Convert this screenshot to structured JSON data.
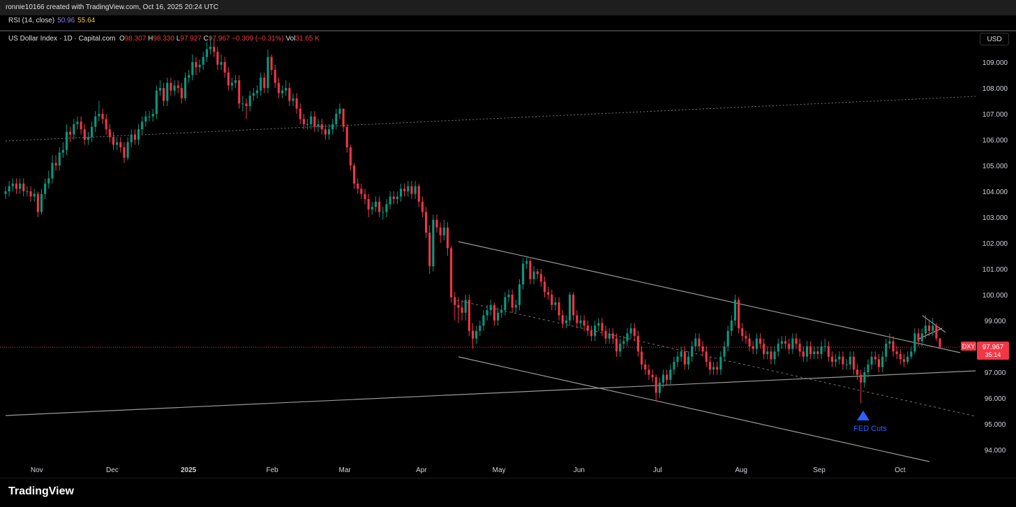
{
  "top_bar": "ronnie10166 created with TradingView.com, Oct 16, 2025 20:24 UTC",
  "rsi": {
    "label": "RSI (14, close)",
    "value": "50.96",
    "ma": "55.64"
  },
  "legend": {
    "symbol": "US Dollar Index · 1D · Capital.com",
    "o_label": "O",
    "o": "98.307",
    "h_label": "H",
    "h": "98.330",
    "l_label": "L",
    "l": "97.927",
    "c_label": "C",
    "c": "97.967",
    "change": "−0.309 (−0.31%)",
    "vol_label": "Vol",
    "vol": "31.65 K"
  },
  "currency": "USD",
  "footer": "TradingView",
  "chart_data": {
    "type": "candlestick",
    "up_color": "#089981",
    "down_color": "#f23645",
    "price_label": {
      "symbol": "DXY",
      "countdown": "35:14"
    },
    "annotation": "FED Cuts",
    "xlim": [
      -1.55,
      269.9
    ],
    "xticks": [
      {
        "value": 8.7,
        "label": "Nov"
      },
      {
        "value": 29.7,
        "label": "Dec"
      },
      {
        "value": 50.9,
        "label": "2025"
      },
      {
        "value": 74.2,
        "label": "Feb"
      },
      {
        "value": 94.4,
        "label": "Mar"
      },
      {
        "value": 115.7,
        "label": "Apr"
      },
      {
        "value": 137.3,
        "label": "May"
      },
      {
        "value": 159.6,
        "label": "Jun"
      },
      {
        "value": 181.4,
        "label": "Jul"
      },
      {
        "value": 204.7,
        "label": "Aug"
      },
      {
        "value": 226.4,
        "label": "Sep"
      },
      {
        "value": 248.9,
        "label": "Oct"
      }
    ],
    "ylim": [
      92.97,
      110.19
    ],
    "yticks": [
      {
        "value": 94,
        "label": "94.000"
      },
      {
        "value": 95,
        "label": "95.000"
      },
      {
        "value": 96,
        "label": "96.000"
      },
      {
        "value": 97,
        "label": "97.000"
      },
      {
        "value": 98,
        "label": "98.000"
      },
      {
        "value": 99,
        "label": "99.000"
      },
      {
        "value": 100,
        "label": "100.000"
      },
      {
        "value": 101,
        "label": "101.000"
      },
      {
        "value": 102,
        "label": "102.000"
      },
      {
        "value": 103,
        "label": "103.000"
      },
      {
        "value": 104,
        "label": "104.000"
      },
      {
        "value": 105,
        "label": "105.000"
      },
      {
        "value": 106,
        "label": "106.000"
      },
      {
        "value": 107,
        "label": "107.000"
      },
      {
        "value": 108,
        "label": "108.000"
      },
      {
        "value": 109,
        "label": "109.000"
      }
    ],
    "open": [
      103.9,
      104.0,
      104.2,
      104.3,
      104.1,
      104.3,
      104.0,
      104.0,
      103.8,
      103.9,
      103.2,
      103.9,
      104.3,
      104.5,
      105.1,
      105.0,
      105.5,
      105.6,
      106.3,
      106.2,
      106.6,
      106.7,
      106.4,
      106.0,
      106.1,
      106.5,
      106.9,
      107.0,
      106.8,
      106.4,
      106.1,
      105.8,
      105.9,
      105.7,
      105.3,
      105.9,
      106.2,
      106.0,
      106.4,
      106.7,
      106.9,
      106.9,
      107.0,
      107.9,
      108.0,
      107.5,
      108.2,
      107.9,
      108.1,
      108.0,
      107.6,
      108.4,
      108.5,
      109.0,
      108.8,
      108.9,
      109.2,
      109.5,
      109.6,
      109.4,
      108.9,
      109.0,
      108.6,
      108.1,
      108.2,
      108.3,
      107.4,
      107.4,
      107.3,
      107.7,
      107.8,
      107.9,
      108.4,
      108.0,
      109.2,
      108.7,
      108.2,
      107.8,
      107.9,
      108.0,
      107.5,
      107.6,
      107.2,
      106.8,
      106.6,
      106.6,
      106.9,
      106.5,
      106.6,
      106.4,
      106.2,
      106.4,
      106.6,
      107.0,
      107.2,
      106.5,
      105.7,
      105.0,
      104.3,
      104.1,
      103.9,
      103.7,
      103.3,
      103.4,
      103.6,
      103.2,
      103.2,
      103.5,
      103.8,
      103.7,
      103.8,
      104.1,
      104.0,
      104.2,
      103.9,
      104.2,
      103.6,
      103.2,
      102.4,
      101.1,
      102.9,
      102.6,
      102.3,
      102.6,
      101.8,
      99.9,
      99.6,
      99.5,
      99.3,
      99.8,
      98.6,
      98.3,
      98.6,
      98.8,
      99.2,
      99.4,
      99.6,
      99.0,
      99.3,
      99.4,
      99.9,
      100.0,
      99.5,
      99.6,
      100.4,
      101.2,
      101.3,
      100.6,
      100.9,
      100.8,
      100.5,
      100.1,
      100.0,
      99.6,
      99.7,
      99.2,
      98.9,
      99.0,
      100.0,
      99.2,
      98.9,
      99.0,
      98.8,
      98.6,
      98.4,
      98.8,
      98.9,
      98.6,
      98.3,
      98.5,
      98.3,
      97.8,
      98.1,
      98.2,
      98.5,
      98.7,
      98.4,
      97.8,
      97.3,
      97.1,
      96.9,
      96.8,
      96.2,
      96.6,
      96.9,
      96.7,
      97.1,
      97.4,
      97.6,
      97.8,
      97.3,
      97.6,
      98.0,
      98.3,
      98.0,
      97.8,
      97.4,
      97.1,
      97.2,
      97.1,
      97.6,
      98.0,
      98.6,
      99.0,
      99.8,
      98.7,
      98.4,
      98.3,
      98.0,
      97.9,
      98.3,
      98.1,
      97.7,
      97.8,
      97.5,
      97.8,
      98.1,
      98.2,
      98.1,
      97.9,
      98.3,
      98.1,
      97.8,
      97.6,
      98.0,
      97.7,
      97.8,
      97.7,
      98.0,
      98.0,
      97.6,
      97.4,
      97.5,
      97.6,
      97.3,
      97.3,
      97.6,
      97.1,
      96.9,
      96.6,
      97.0,
      97.3,
      97.6,
      97.5,
      97.2,
      97.6,
      98.1,
      98.2,
      97.8,
      97.7,
      97.5,
      97.4,
      97.6,
      97.8,
      98.5,
      98.2,
      98.5,
      98.8,
      98.6,
      98.8,
      98.307
    ],
    "high": [
      104.2,
      104.4,
      104.5,
      104.5,
      104.5,
      104.5,
      104.2,
      104.2,
      104.1,
      104.0,
      104.1,
      104.5,
      104.8,
      105.4,
      105.4,
      105.7,
      105.9,
      106.6,
      106.5,
      106.8,
      106.9,
      106.9,
      106.6,
      106.3,
      106.7,
      107.1,
      107.5,
      107.2,
      107.0,
      106.6,
      106.3,
      106.1,
      106.1,
      105.9,
      106.1,
      106.4,
      106.4,
      106.6,
      106.9,
      107.1,
      107.1,
      107.2,
      108.1,
      108.3,
      108.2,
      108.4,
      108.4,
      108.3,
      108.3,
      108.2,
      108.6,
      108.7,
      109.3,
      109.2,
      109.1,
      109.4,
      109.8,
      110.0,
      109.9,
      109.6,
      109.3,
      109.2,
      108.8,
      108.4,
      108.5,
      108.5,
      107.7,
      107.6,
      107.9,
      108.0,
      108.1,
      108.6,
      108.6,
      109.5,
      109.3,
      108.9,
      108.4,
      108.1,
      108.3,
      108.2,
      107.8,
      107.8,
      107.4,
      107.0,
      106.8,
      107.1,
      107.1,
      106.8,
      106.8,
      106.6,
      106.6,
      106.8,
      107.2,
      107.4,
      107.2,
      106.6,
      105.8,
      105.1,
      104.5,
      104.3,
      104.1,
      103.9,
      103.6,
      103.8,
      103.8,
      103.4,
      103.7,
      104.0,
      104.0,
      104.0,
      104.3,
      104.3,
      104.4,
      104.4,
      104.4,
      104.3,
      103.8,
      103.4,
      102.7,
      103.1,
      103.1,
      102.8,
      102.9,
      102.8,
      101.9,
      100.1,
      99.9,
      99.8,
      100.0,
      100.0,
      98.9,
      98.8,
      99.0,
      99.4,
      99.6,
      99.8,
      99.7,
      99.5,
      99.6,
      100.1,
      100.2,
      100.2,
      99.8,
      100.6,
      101.4,
      101.5,
      101.4,
      101.1,
      101.0,
      101.0,
      100.7,
      100.3,
      100.2,
      99.9,
      99.9,
      99.4,
      99.2,
      100.1,
      100.1,
      99.4,
      99.2,
      99.2,
      99.0,
      98.8,
      99.0,
      99.1,
      99.1,
      98.8,
      98.7,
      98.7,
      98.5,
      98.3,
      98.4,
      98.7,
      98.9,
      98.9,
      98.6,
      98.0,
      97.5,
      97.3,
      97.1,
      96.9,
      96.8,
      97.1,
      97.1,
      97.3,
      97.6,
      97.8,
      98.0,
      98.0,
      97.8,
      98.2,
      98.5,
      98.5,
      98.2,
      98.0,
      97.6,
      97.4,
      97.4,
      97.8,
      98.2,
      98.8,
      99.2,
      100.0,
      99.9,
      98.9,
      98.6,
      98.5,
      98.2,
      98.5,
      98.5,
      98.3,
      98.0,
      98.0,
      98.0,
      98.3,
      98.4,
      98.4,
      98.3,
      98.5,
      98.5,
      98.3,
      98.0,
      98.2,
      98.2,
      98.0,
      98.0,
      98.2,
      98.3,
      98.2,
      97.8,
      97.7,
      97.8,
      97.8,
      97.5,
      97.8,
      97.8,
      97.3,
      97.1,
      97.2,
      97.5,
      97.8,
      97.8,
      97.7,
      97.8,
      98.3,
      98.5,
      98.4,
      98.0,
      97.9,
      97.7,
      97.8,
      98.0,
      98.7,
      98.7,
      98.7,
      99.2,
      99.0,
      99.1,
      98.9,
      98.33
    ],
    "low": [
      103.7,
      103.8,
      104.0,
      103.9,
      103.9,
      103.8,
      103.8,
      103.6,
      103.6,
      103.0,
      103.1,
      103.7,
      104.1,
      104.3,
      104.8,
      104.8,
      105.3,
      105.4,
      105.9,
      106.0,
      106.4,
      106.2,
      105.8,
      105.8,
      105.9,
      106.3,
      106.7,
      106.6,
      106.2,
      105.9,
      105.6,
      105.6,
      105.5,
      105.1,
      105.2,
      105.7,
      105.8,
      105.8,
      106.2,
      106.5,
      106.7,
      106.7,
      106.8,
      107.7,
      107.3,
      107.3,
      107.7,
      107.7,
      107.8,
      107.4,
      107.5,
      108.2,
      108.3,
      108.5,
      108.6,
      108.7,
      109.0,
      109.3,
      109.2,
      108.7,
      108.7,
      108.4,
      107.9,
      107.9,
      108.0,
      107.2,
      107.1,
      106.8,
      107.1,
      107.5,
      107.6,
      107.7,
      107.8,
      107.8,
      108.5,
      108.0,
      107.6,
      107.6,
      107.7,
      107.3,
      107.3,
      107.0,
      106.6,
      106.4,
      106.4,
      106.4,
      106.3,
      106.3,
      106.2,
      106.0,
      106.0,
      106.2,
      106.4,
      106.8,
      106.3,
      105.5,
      104.8,
      104.1,
      103.9,
      103.7,
      103.5,
      103.0,
      103.1,
      103.2,
      103.0,
      102.9,
      103.0,
      103.3,
      103.5,
      103.5,
      103.6,
      103.8,
      103.8,
      103.7,
      103.7,
      103.4,
      103.0,
      102.2,
      100.8,
      100.9,
      102.4,
      102.0,
      102.1,
      101.5,
      99.7,
      99.0,
      98.9,
      99.0,
      99.0,
      98.4,
      97.9,
      98.1,
      98.4,
      98.6,
      99.0,
      99.2,
      98.8,
      98.8,
      99.1,
      99.2,
      99.7,
      99.3,
      99.3,
      99.4,
      100.2,
      101.0,
      100.4,
      100.4,
      100.6,
      100.3,
      99.9,
      99.8,
      99.4,
      99.4,
      99.0,
      98.7,
      98.7,
      98.8,
      99.0,
      98.7,
      98.7,
      98.6,
      98.4,
      98.2,
      98.2,
      98.6,
      98.4,
      98.1,
      98.1,
      98.1,
      97.6,
      97.6,
      97.9,
      98.0,
      98.3,
      98.2,
      97.6,
      97.1,
      96.9,
      96.7,
      96.6,
      95.9,
      96.0,
      96.4,
      96.5,
      96.5,
      96.9,
      97.2,
      97.4,
      97.1,
      97.1,
      97.4,
      97.8,
      97.8,
      97.6,
      97.2,
      96.9,
      96.9,
      96.9,
      96.9,
      97.4,
      97.8,
      98.4,
      98.8,
      98.5,
      98.2,
      98.1,
      97.8,
      97.7,
      97.7,
      97.9,
      97.5,
      97.5,
      97.3,
      97.3,
      97.6,
      97.9,
      97.9,
      97.7,
      97.7,
      97.9,
      97.6,
      97.4,
      97.4,
      97.5,
      97.5,
      97.5,
      97.5,
      97.8,
      97.4,
      97.2,
      97.2,
      97.3,
      97.1,
      97.1,
      97.1,
      96.9,
      96.7,
      95.8,
      96.4,
      96.8,
      97.1,
      97.3,
      97.0,
      97.0,
      97.4,
      97.9,
      97.6,
      97.5,
      97.3,
      97.2,
      97.3,
      97.5,
      97.7,
      98.0,
      98.0,
      98.3,
      98.4,
      98.4,
      98.2,
      97.927
    ],
    "close": [
      104.0,
      104.2,
      104.3,
      104.1,
      104.3,
      104.0,
      104.0,
      103.8,
      103.9,
      103.2,
      103.9,
      104.3,
      104.5,
      105.1,
      105.0,
      105.5,
      105.6,
      106.3,
      106.2,
      106.6,
      106.7,
      106.4,
      106.0,
      106.1,
      106.5,
      106.9,
      107.0,
      106.8,
      106.4,
      106.1,
      105.8,
      105.9,
      105.7,
      105.3,
      105.9,
      106.2,
      106.0,
      106.4,
      106.7,
      106.9,
      106.9,
      107.0,
      107.9,
      108.0,
      107.5,
      108.2,
      107.9,
      108.1,
      108.0,
      107.6,
      108.4,
      108.5,
      109.0,
      108.8,
      108.9,
      109.2,
      109.5,
      109.6,
      109.4,
      108.9,
      109.0,
      108.6,
      108.1,
      108.2,
      108.3,
      107.4,
      107.4,
      107.3,
      107.7,
      107.8,
      107.9,
      108.4,
      108.0,
      109.2,
      108.7,
      108.2,
      107.8,
      107.9,
      108.0,
      107.5,
      107.6,
      107.2,
      106.8,
      106.6,
      106.6,
      106.9,
      106.5,
      106.6,
      106.4,
      106.2,
      106.4,
      106.6,
      107.0,
      107.2,
      106.5,
      105.7,
      105.0,
      104.3,
      104.1,
      103.9,
      103.7,
      103.3,
      103.4,
      103.6,
      103.2,
      103.2,
      103.5,
      103.8,
      103.7,
      103.8,
      104.1,
      104.0,
      104.2,
      103.9,
      104.2,
      103.6,
      103.2,
      102.4,
      101.1,
      102.9,
      102.6,
      102.3,
      102.6,
      101.8,
      99.9,
      99.6,
      99.5,
      99.3,
      99.8,
      98.6,
      98.3,
      98.6,
      98.8,
      99.2,
      99.4,
      99.6,
      99.0,
      99.3,
      99.4,
      99.9,
      100.0,
      99.5,
      99.6,
      100.4,
      101.2,
      101.3,
      100.6,
      100.9,
      100.8,
      100.5,
      100.1,
      100.0,
      99.6,
      99.7,
      99.2,
      98.9,
      99.0,
      100.0,
      99.2,
      98.9,
      99.0,
      98.8,
      98.6,
      98.4,
      98.8,
      98.9,
      98.6,
      98.3,
      98.5,
      98.3,
      97.8,
      98.1,
      98.2,
      98.5,
      98.7,
      98.4,
      97.8,
      97.3,
      97.1,
      96.9,
      96.8,
      96.2,
      96.6,
      96.9,
      96.7,
      97.1,
      97.4,
      97.6,
      97.8,
      97.3,
      97.6,
      98.0,
      98.3,
      98.0,
      97.8,
      97.4,
      97.1,
      97.2,
      97.1,
      97.6,
      98.0,
      98.6,
      99.0,
      99.8,
      98.7,
      98.4,
      98.3,
      98.0,
      97.9,
      98.3,
      98.1,
      97.7,
      97.8,
      97.5,
      97.8,
      98.1,
      98.2,
      98.1,
      97.9,
      98.3,
      98.1,
      97.8,
      97.6,
      98.0,
      97.7,
      97.8,
      97.7,
      98.0,
      98.0,
      97.6,
      97.4,
      97.5,
      97.6,
      97.3,
      97.3,
      97.6,
      97.1,
      96.9,
      96.6,
      97.0,
      97.3,
      97.6,
      97.5,
      97.2,
      97.6,
      98.1,
      98.2,
      97.8,
      97.7,
      97.5,
      97.4,
      97.6,
      97.8,
      98.5,
      98.2,
      98.5,
      98.8,
      98.6,
      98.8,
      98.307,
      97.967
    ]
  }
}
